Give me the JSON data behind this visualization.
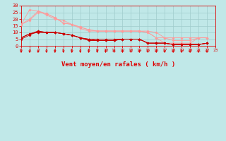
{
  "background_color": "#c0e8e8",
  "grid_color": "#a0cccc",
  "text_color": "#dd0000",
  "xlabel": "Vent moyen/en rafales ( km/h )",
  "xlim": [
    0,
    23
  ],
  "ylim": [
    0,
    30
  ],
  "yticks": [
    0,
    5,
    10,
    15,
    20,
    25,
    30
  ],
  "xticks": [
    0,
    1,
    2,
    3,
    4,
    5,
    6,
    7,
    8,
    9,
    10,
    11,
    12,
    13,
    14,
    15,
    16,
    17,
    18,
    19,
    20,
    21,
    22,
    23
  ],
  "light_color": "#ff9999",
  "dark_color": "#cc0000",
  "series_light": [
    [
      16,
      27,
      26,
      23,
      20,
      19,
      16,
      13,
      11,
      11,
      11,
      11,
      11,
      11,
      11,
      11,
      10,
      6,
      6,
      6,
      6,
      6,
      6
    ],
    [
      16,
      20,
      26,
      24,
      21,
      17,
      16,
      14,
      12,
      11,
      11,
      11,
      11,
      11,
      11,
      10,
      6,
      6,
      4,
      4,
      4,
      6,
      6
    ],
    [
      16,
      19,
      25,
      24,
      21,
      17,
      16,
      14,
      12,
      11,
      11,
      11,
      11,
      11,
      11,
      10,
      6,
      2,
      2,
      2,
      2,
      6,
      6
    ]
  ],
  "series_dark": [
    [
      6,
      9,
      11,
      10,
      10,
      9,
      8,
      6,
      5,
      5,
      5,
      5,
      5,
      5,
      5,
      2,
      2,
      2,
      1,
      1,
      1,
      1,
      2
    ],
    [
      6,
      9,
      10,
      10,
      10,
      9,
      8,
      6,
      5,
      4,
      4,
      4,
      5,
      5,
      5,
      2,
      2,
      2,
      1,
      1,
      1,
      1,
      2
    ],
    [
      6,
      9,
      10,
      10,
      10,
      9,
      8,
      6,
      4,
      4,
      4,
      4,
      5,
      5,
      5,
      2,
      2,
      2,
      1,
      1,
      1,
      1,
      2
    ],
    [
      5,
      8,
      11,
      10,
      10,
      9,
      8,
      6,
      4,
      4,
      4,
      4,
      5,
      5,
      5,
      2,
      2,
      2,
      1,
      1,
      1,
      1,
      2
    ]
  ],
  "figsize": [
    3.2,
    2.0
  ],
  "dpi": 100
}
